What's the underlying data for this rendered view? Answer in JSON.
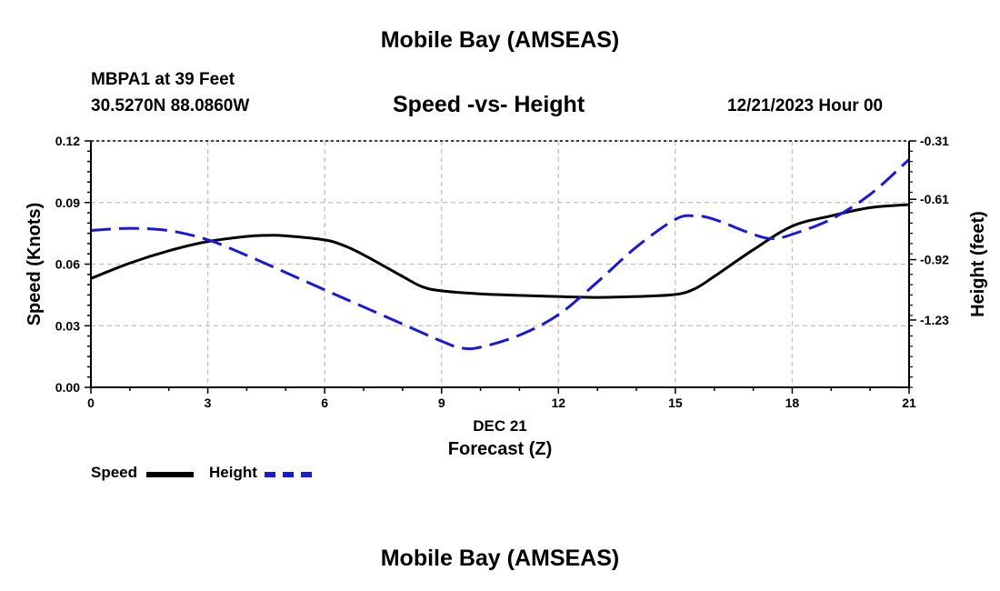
{
  "page": {
    "title": "Mobile Bay (AMSEAS)",
    "title_repeat": "Mobile Bay (AMSEAS)",
    "station_line": "MBPA1 at 39 Feet",
    "coords_line": "30.5270N  88.0860W",
    "chart_title": "Speed -vs- Height",
    "date_line": "12/21/2023 Hour 00"
  },
  "legend": [
    {
      "label": "Speed",
      "color": "#000000",
      "style": "solid"
    },
    {
      "label": "Height",
      "color": "#1a1ad6",
      "style": "dashed"
    }
  ],
  "chart_data": {
    "type": "line",
    "title": "Speed -vs- Height",
    "xlabel": "Forecast (Z)",
    "xlabel_date": "DEC 21",
    "ylabel": "Speed (Knots)",
    "y2label": "Height (feet)",
    "xlim": [
      0,
      21
    ],
    "ylim": [
      0,
      0.12
    ],
    "y2lim": [
      -1.576,
      -0.31
    ],
    "x_ticks": [
      0,
      3,
      6,
      9,
      12,
      15,
      18,
      21
    ],
    "x_tick_labels": [
      "0",
      "3",
      "6",
      "9",
      "12",
      "15",
      "18",
      "21"
    ],
    "y_ticks": [
      0,
      0.03,
      0.06,
      0.09,
      0.12
    ],
    "y_tick_labels": [
      "0.00",
      "0.03",
      "0.06",
      "0.09",
      "0.12"
    ],
    "y2_ticks": [
      -0.31,
      -0.61,
      -0.92,
      -1.23
    ],
    "y2_tick_labels": [
      "-0.31",
      "-0.61",
      "-0.92",
      "-1.23"
    ],
    "grid": true,
    "series": [
      {
        "name": "Speed",
        "axis": "left",
        "color": "#000000",
        "dashed": false,
        "x": [
          0,
          1,
          2,
          3,
          4,
          4.5,
          5,
          6,
          6.5,
          7,
          8,
          8.5,
          9,
          10,
          11,
          12,
          13,
          14,
          15,
          15.5,
          16,
          17,
          18,
          19,
          20,
          21
        ],
        "values": [
          0.053,
          0.0605,
          0.0665,
          0.071,
          0.0735,
          0.074,
          0.0738,
          0.0718,
          0.069,
          0.0645,
          0.054,
          0.049,
          0.047,
          0.0455,
          0.0448,
          0.0442,
          0.0438,
          0.0442,
          0.0452,
          0.048,
          0.054,
          0.067,
          0.0785,
          0.0835,
          0.0875,
          0.089
        ]
      },
      {
        "name": "Height",
        "axis": "right",
        "color": "#1a1ad6",
        "dashed": true,
        "x": [
          0,
          1,
          2,
          3,
          4,
          5,
          6,
          7,
          8,
          9,
          9.5,
          10,
          11,
          12,
          13,
          14,
          15,
          15.5,
          16,
          17,
          17.5,
          18,
          19,
          20,
          21
        ],
        "values": [
          -0.77,
          -0.759,
          -0.771,
          -0.818,
          -0.898,
          -0.986,
          -1.075,
          -1.163,
          -1.251,
          -1.339,
          -1.374,
          -1.37,
          -1.308,
          -1.203,
          -1.035,
          -0.855,
          -0.713,
          -0.695,
          -0.713,
          -0.79,
          -0.812,
          -0.79,
          -0.712,
          -0.585,
          -0.405
        ]
      }
    ]
  }
}
